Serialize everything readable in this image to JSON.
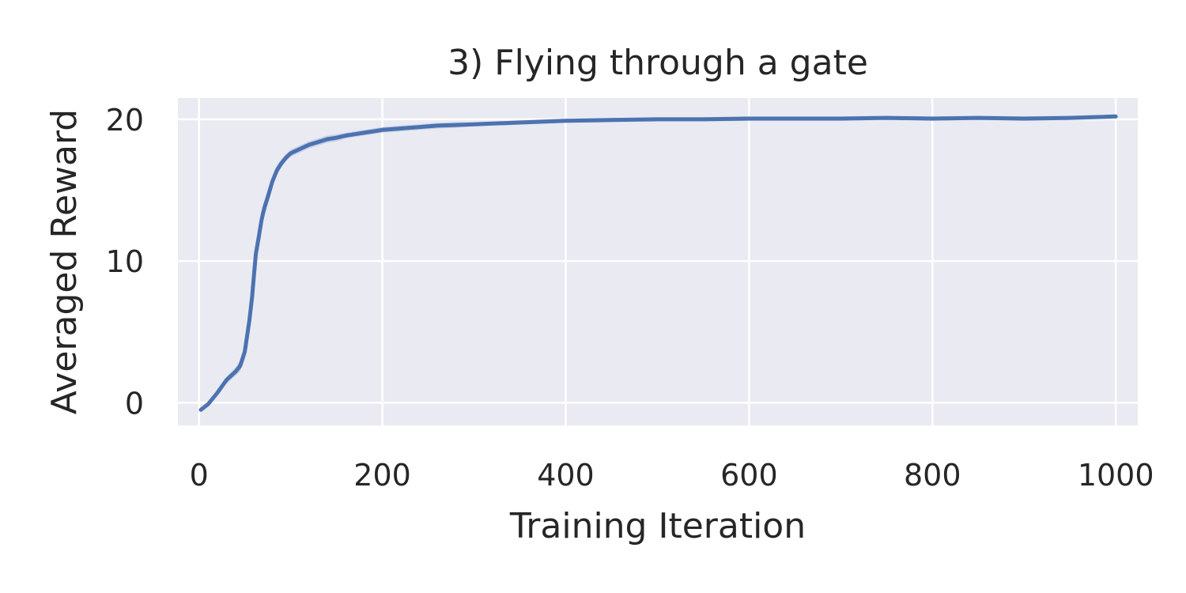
{
  "chart_data": {
    "type": "line",
    "title": "3) Flying through a gate",
    "xlabel": "Training Iteration",
    "ylabel": "Averaged Reward",
    "xlim": [
      -23,
      1024
    ],
    "ylim": [
      -1.6,
      21.5
    ],
    "xticks": [
      0,
      200,
      400,
      600,
      800,
      1000
    ],
    "yticks": [
      0,
      10,
      20
    ],
    "xtick_labels": [
      "0",
      "200",
      "400",
      "600",
      "800",
      "1000"
    ],
    "ytick_labels": [
      "0",
      "10",
      "20"
    ],
    "grid": true,
    "background": "#EAEAF2",
    "grid_color": "#FFFFFF",
    "series": [
      {
        "color": "#4C72B0",
        "band_color": "#A9B8D9",
        "x": [
          2,
          10,
          20,
          30,
          40,
          45,
          50,
          55,
          58,
          60,
          62,
          65,
          68,
          70,
          72,
          75,
          80,
          85,
          90,
          95,
          100,
          110,
          120,
          130,
          140,
          150,
          160,
          170,
          180,
          190,
          200,
          220,
          240,
          260,
          280,
          300,
          320,
          340,
          360,
          380,
          400,
          450,
          500,
          550,
          600,
          650,
          700,
          750,
          800,
          850,
          900,
          950,
          1000
        ],
        "y": [
          -0.5,
          -0.1,
          0.7,
          1.6,
          2.2,
          2.6,
          3.6,
          5.8,
          7.5,
          9.0,
          10.5,
          11.6,
          12.8,
          13.4,
          13.9,
          14.5,
          15.6,
          16.4,
          16.9,
          17.3,
          17.6,
          17.9,
          18.2,
          18.4,
          18.6,
          18.7,
          18.85,
          18.95,
          19.05,
          19.15,
          19.25,
          19.35,
          19.45,
          19.55,
          19.6,
          19.65,
          19.7,
          19.75,
          19.8,
          19.85,
          19.9,
          19.95,
          20.0,
          20.0,
          20.05,
          20.05,
          20.05,
          20.1,
          20.05,
          20.1,
          20.05,
          20.1,
          20.2
        ],
        "band": [
          0.15,
          0.15,
          0.2,
          0.25,
          0.3,
          0.4,
          0.5,
          0.7,
          0.8,
          0.8,
          0.8,
          0.8,
          0.7,
          0.6,
          0.5,
          0.5,
          0.4,
          0.35,
          0.3,
          0.25,
          0.25,
          0.25,
          0.25,
          0.25,
          0.25,
          0.25,
          0.2,
          0.2,
          0.2,
          0.2,
          0.2,
          0.2,
          0.2,
          0.2,
          0.2,
          0.15,
          0.15,
          0.15,
          0.15,
          0.15,
          0.15,
          0.15,
          0.15,
          0.15,
          0.15,
          0.15,
          0.15,
          0.15,
          0.15,
          0.15,
          0.15,
          0.15,
          0.15
        ]
      }
    ]
  }
}
